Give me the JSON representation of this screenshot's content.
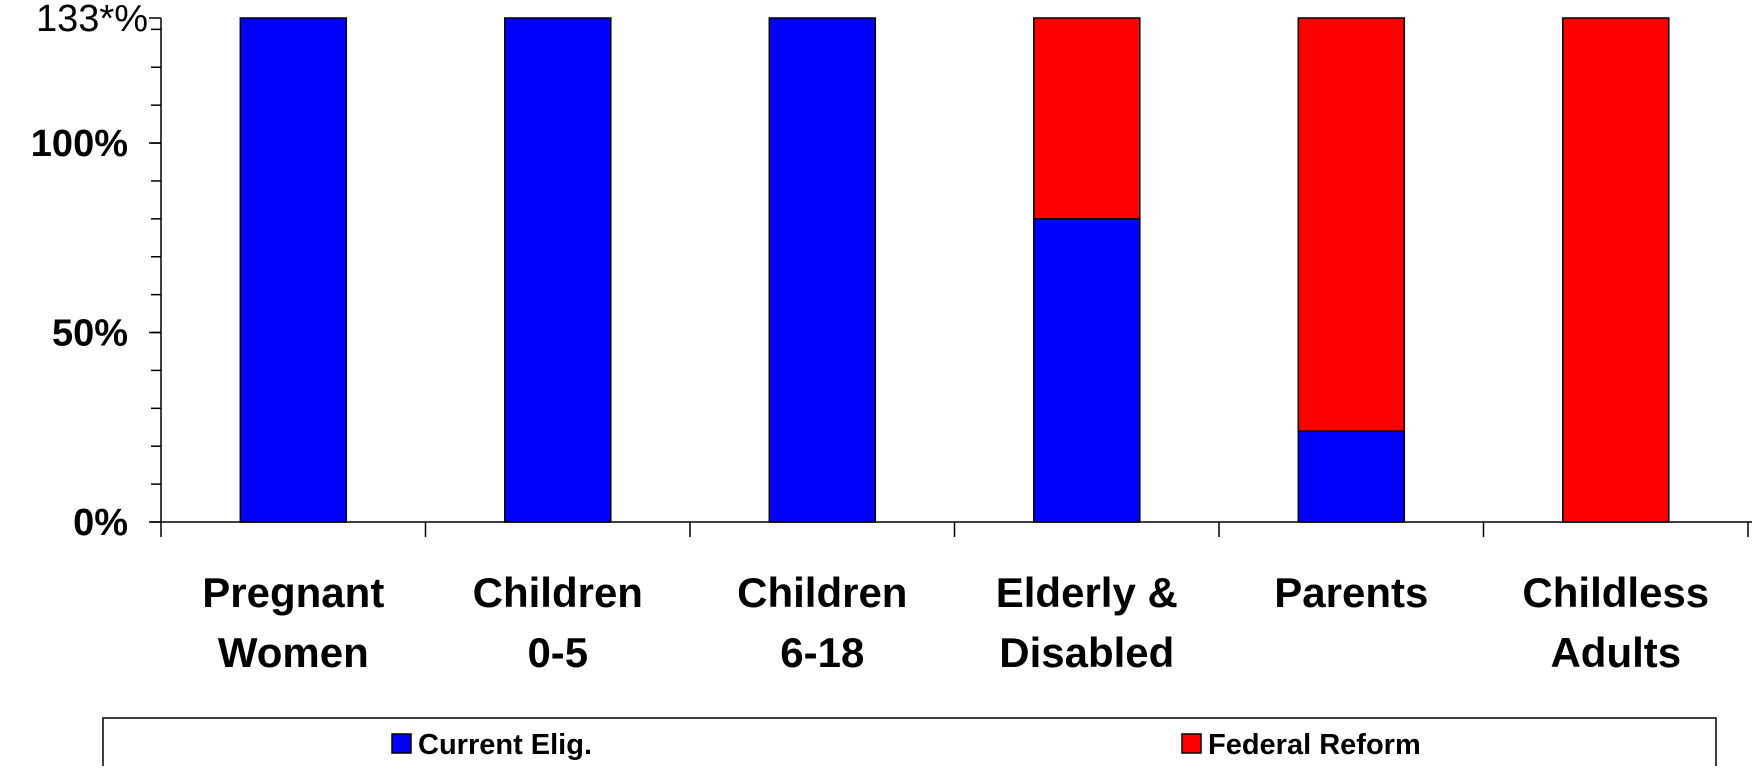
{
  "colors": {
    "current": "#0000FF",
    "reform": "#FF0000",
    "top_tick": "#FF0000",
    "axis": "#000000"
  },
  "chart_data": {
    "type": "bar",
    "stacked": true,
    "categories": [
      [
        "Pregnant",
        "Women"
      ],
      [
        "Children",
        "0-5"
      ],
      [
        "Children",
        "6-18"
      ],
      [
        "Elderly &",
        "Disabled"
      ],
      [
        "Parents"
      ],
      [
        "Childless",
        "Adults"
      ]
    ],
    "series": [
      {
        "name": "Current Elig.",
        "values": [
          133,
          133,
          133,
          80,
          24,
          0
        ]
      },
      {
        "name": "Federal Reform",
        "values": [
          0,
          0,
          0,
          53,
          109,
          133
        ]
      }
    ],
    "ylim": [
      0,
      133
    ],
    "yticks": [
      {
        "value": 0,
        "label": "0%"
      },
      {
        "value": 50,
        "label": "50%"
      },
      {
        "value": 100,
        "label": "100%"
      },
      {
        "value": 133,
        "label": "133*%"
      }
    ],
    "minor_tick_step": 10,
    "title": "",
    "xlabel": "",
    "ylabel": "",
    "grid": false,
    "legend_position": "bottom"
  }
}
